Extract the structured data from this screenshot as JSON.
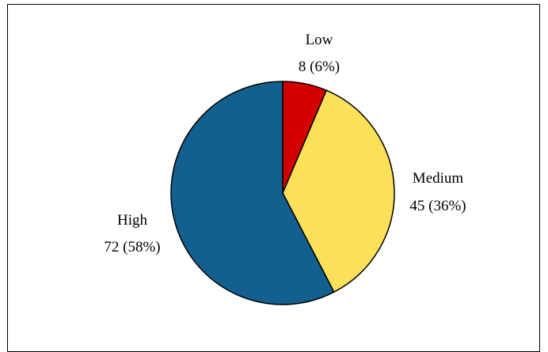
{
  "chart_data": {
    "type": "pie",
    "slices": [
      {
        "label": "Low",
        "value": 8,
        "percent": "6%",
        "color": "#d40000",
        "annotation": "8 (6%)"
      },
      {
        "label": "Medium",
        "value": 45,
        "percent": "36%",
        "color": "#fbe05a",
        "annotation": "45 (36%)"
      },
      {
        "label": "High",
        "value": 72,
        "percent": "58%",
        "color": "#135f8f",
        "annotation": "72 (58%)"
      }
    ],
    "legend": "none",
    "start_angle": "12 o'clock",
    "direction": "clockwise"
  }
}
